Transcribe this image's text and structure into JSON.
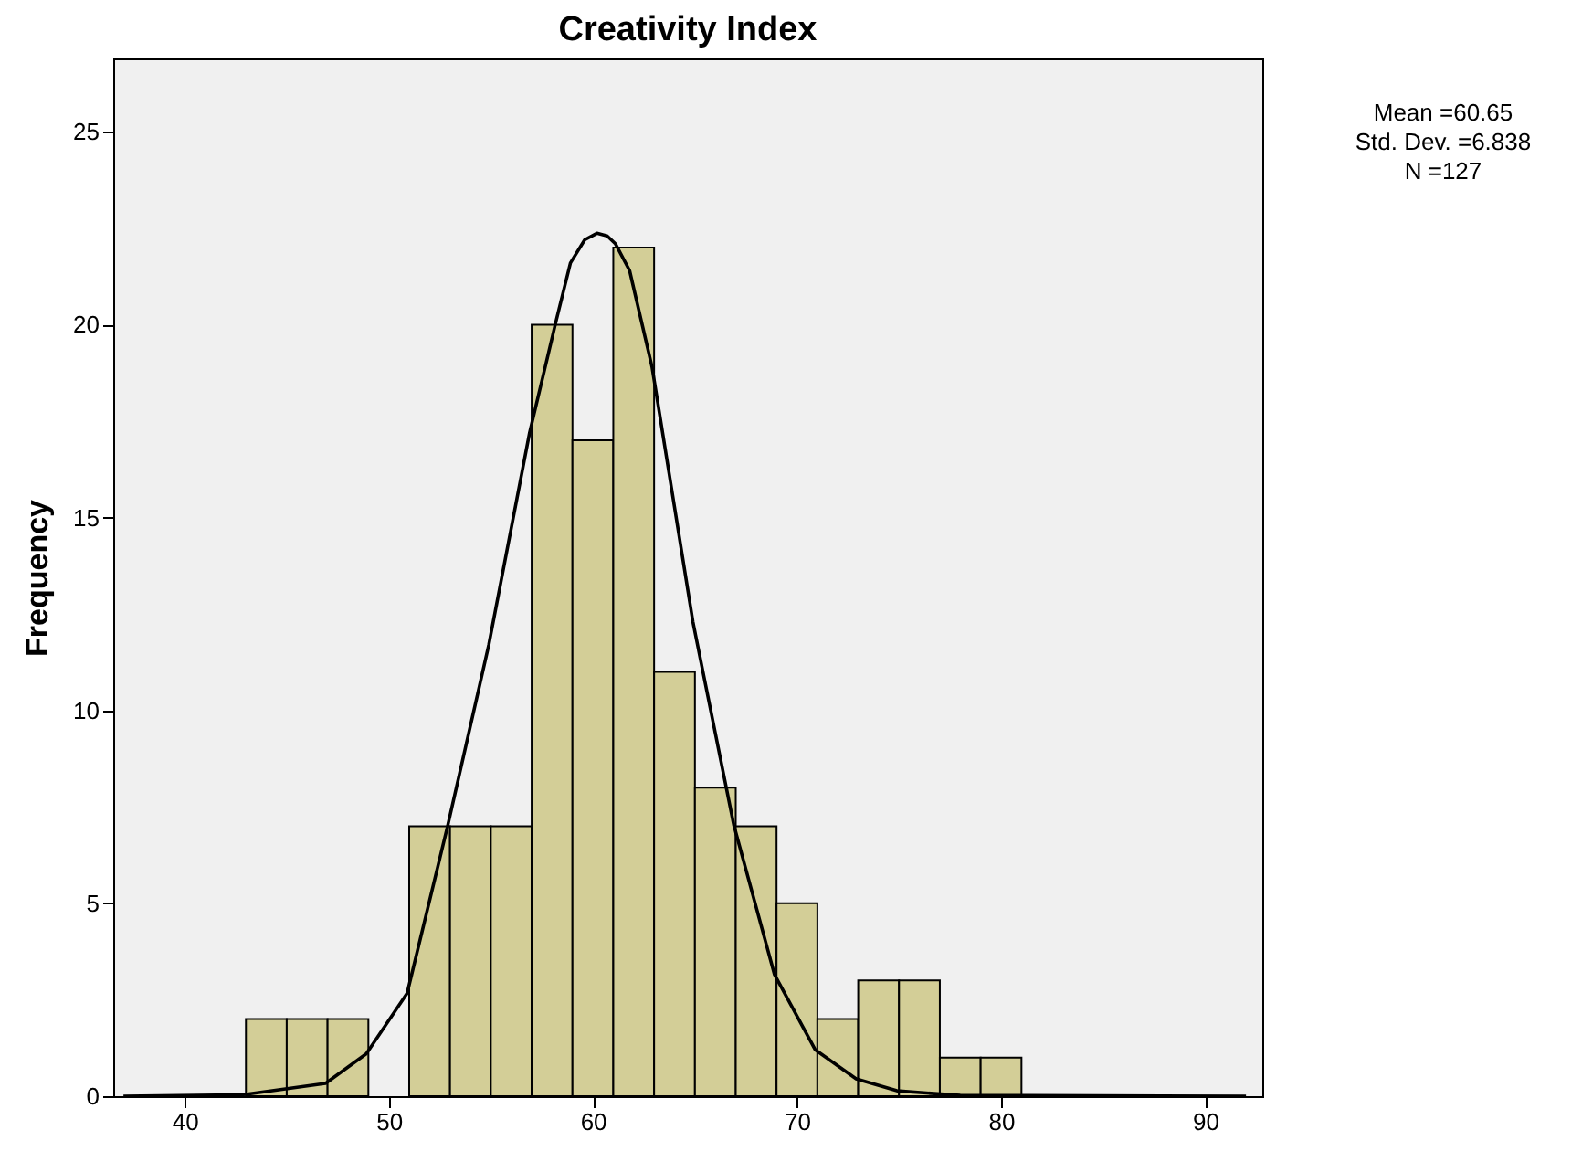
{
  "chart_data": {
    "type": "histogram",
    "title": "Creativity Index",
    "ylabel": "Frequency",
    "annotations": [
      "Mean =60.65",
      "Std. Dev. =6.838",
      "N =127"
    ],
    "color": "#d3ce97",
    "bins": [
      43,
      45,
      47,
      49,
      51,
      53,
      55,
      57,
      59,
      61,
      63,
      65,
      67,
      69,
      71,
      73,
      75,
      77,
      79,
      81
    ],
    "values": [
      2,
      2,
      2,
      0,
      7,
      7,
      7,
      20,
      17,
      22,
      11,
      8,
      7,
      5,
      2,
      3,
      3,
      1,
      1
    ],
    "series": [
      {
        "type": "line",
        "color": "#000000",
        "x": [
          37,
          42.9,
          46.9,
          48.9,
          50.9,
          52.9,
          54.9,
          56.9,
          58.2,
          58.9,
          59.6,
          60.2,
          60.7,
          61.1,
          61.8,
          62.9,
          64.9,
          66.9,
          68.9,
          70.9,
          72.9,
          74.9,
          78,
          92
        ],
        "values": [
          0,
          0.04,
          0.33,
          1.1,
          2.67,
          7.04,
          11.7,
          17.2,
          20.1,
          21.6,
          22.2,
          22.37,
          22.3,
          22.1,
          21.4,
          18.9,
          12.3,
          7.04,
          3.15,
          1.2,
          0.45,
          0.14,
          0.02,
          0
        ]
      }
    ],
    "xlim": [
      36.5,
      92.8
    ],
    "ylim": [
      0,
      26.9
    ],
    "xticks": [
      40,
      50,
      60,
      70,
      80,
      90
    ],
    "yticks": [
      0,
      5,
      10,
      15,
      20,
      25
    ]
  }
}
